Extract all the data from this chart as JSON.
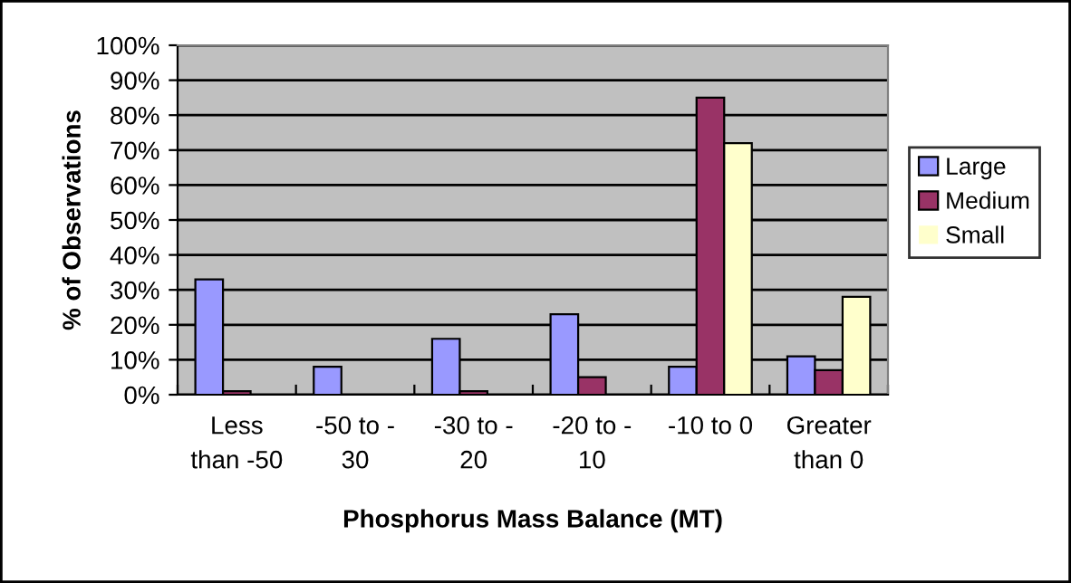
{
  "chart_data": {
    "type": "bar",
    "xlabel": "Phosphorus Mass Balance (MT)",
    "ylabel": "% of Observations",
    "categories": [
      "Less\nthan -50",
      "-50 to -\n30",
      "-30 to -\n20",
      "-20 to -\n10",
      "-10 to 0",
      "Greater\nthan 0"
    ],
    "series": [
      {
        "name": "Large",
        "color": "#9999ff",
        "values": [
          33,
          8,
          16,
          23,
          8,
          11
        ]
      },
      {
        "name": "Medium",
        "color": "#993366",
        "values": [
          1,
          0,
          1,
          5,
          85,
          7
        ]
      },
      {
        "name": "Small",
        "color": "#ffffcc",
        "values": [
          0,
          0,
          0,
          0,
          72,
          28
        ]
      }
    ],
    "ylim": [
      0,
      100
    ],
    "yticks": [
      {
        "value": 0,
        "label": "0%"
      },
      {
        "value": 10,
        "label": "10%"
      },
      {
        "value": 20,
        "label": "20%"
      },
      {
        "value": 30,
        "label": "30%"
      },
      {
        "value": 40,
        "label": "40%"
      },
      {
        "value": 50,
        "label": "50%"
      },
      {
        "value": 60,
        "label": "60%"
      },
      {
        "value": 70,
        "label": "70%"
      },
      {
        "value": 80,
        "label": "80%"
      },
      {
        "value": 90,
        "label": "90%"
      },
      {
        "value": 100,
        "label": "100%"
      }
    ],
    "grid": "y",
    "legend": "right"
  }
}
